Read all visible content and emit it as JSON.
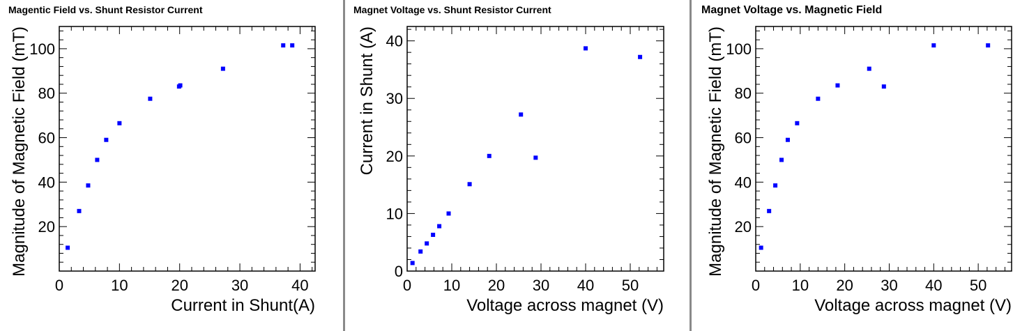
{
  "chart_data": [
    {
      "type": "scatter",
      "title": "Magentic Field vs. Shunt Resistor Current",
      "xlabel": "Current in Shunt(A)",
      "ylabel": "Magnitude of Magnetic Field (mT)",
      "xlim": [
        0,
        42.5
      ],
      "ylim": [
        0,
        110
      ],
      "xticks": [
        0,
        10,
        20,
        30,
        40
      ],
      "yticks": [
        20,
        40,
        60,
        80,
        100
      ],
      "x": [
        1.4,
        3.3,
        4.8,
        6.3,
        7.8,
        10.0,
        15.1,
        19.9,
        20.1,
        27.2,
        37.2,
        38.7
      ],
      "y": [
        10.5,
        27,
        38.5,
        50,
        59,
        66.5,
        77.5,
        83,
        83.5,
        91,
        101.5,
        101.5
      ],
      "color": "#0000ff"
    },
    {
      "type": "scatter",
      "title": "Magnet Voltage vs. Shunt Resistor Current",
      "xlabel": "Voltage across magnet (V)",
      "ylabel": "Current in Shunt (A)",
      "xlim": [
        0,
        57.5
      ],
      "ylim": [
        0,
        42.5
      ],
      "xticks": [
        0,
        10,
        20,
        30,
        40,
        50
      ],
      "yticks": [
        0,
        10,
        20,
        30,
        40
      ],
      "x": [
        1.2,
        3.0,
        4.4,
        5.8,
        7.2,
        9.3,
        14.0,
        18.4,
        25.5,
        28.8,
        40.0,
        52.2
      ],
      "y": [
        1.4,
        3.4,
        4.8,
        6.3,
        7.8,
        10.0,
        15.1,
        20.0,
        27.2,
        19.7,
        38.7,
        37.2
      ],
      "color": "#0000ff"
    },
    {
      "type": "scatter",
      "title": "Magnet Voltage vs. Magnetic Field",
      "xlabel": "Voltage across magnet (V)",
      "ylabel": "Magnitude of Magnetic Field (mT)",
      "xlim": [
        0,
        57.5
      ],
      "ylim": [
        0,
        110
      ],
      "xticks": [
        0,
        10,
        20,
        30,
        40,
        50
      ],
      "yticks": [
        20,
        40,
        60,
        80,
        100
      ],
      "x": [
        1.2,
        3.0,
        4.4,
        5.8,
        7.2,
        9.3,
        14.0,
        18.4,
        25.5,
        28.8,
        40.0,
        52.2
      ],
      "y": [
        10.5,
        27,
        38.5,
        50,
        59,
        66.5,
        77.5,
        83.5,
        91,
        83,
        101.5,
        101.5
      ],
      "color": "#0000ff"
    }
  ]
}
